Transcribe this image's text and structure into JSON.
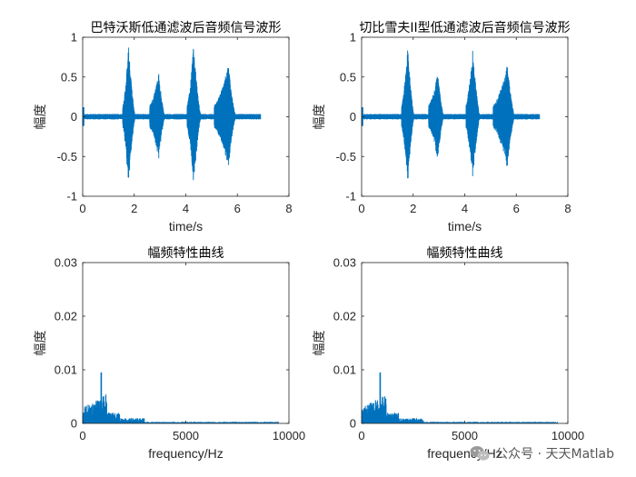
{
  "chart_data": [
    {
      "type": "line",
      "title": "巴特沃斯低通滤波后音频信号波形",
      "xlabel": "time/s",
      "ylabel": "幅度",
      "xlim": [
        0,
        8
      ],
      "ylim": [
        -1,
        1
      ],
      "xticks": [
        0,
        2,
        4,
        6,
        8
      ],
      "yticks": [
        -1,
        -0.5,
        0,
        0.5,
        1
      ],
      "ytick_labels": [
        "-1",
        "-0.5",
        "0",
        "0.5",
        "1"
      ],
      "series_color": "#0072BD",
      "signal_end": 6.9,
      "bursts": [
        {
          "start": 1.55,
          "peak": 1.78,
          "end": 2.05,
          "amp": 0.9
        },
        {
          "start": 2.6,
          "peak": 2.95,
          "end": 3.2,
          "amp": 0.55
        },
        {
          "start": 4.05,
          "peak": 4.3,
          "end": 4.6,
          "amp": 0.9
        },
        {
          "start": 5.1,
          "peak": 5.65,
          "end": 5.95,
          "amp": 0.65
        }
      ]
    },
    {
      "type": "line",
      "title": "切比雪夫II型低通滤波后音频信号波形",
      "xlabel": "time/s",
      "ylabel": "幅度",
      "xlim": [
        0,
        8
      ],
      "ylim": [
        -1,
        1
      ],
      "xticks": [
        0,
        2,
        4,
        6,
        8
      ],
      "yticks": [
        -1,
        -0.5,
        0,
        0.5,
        1
      ],
      "ytick_labels": [
        "-1",
        "-0.5",
        "0",
        "0.5",
        "1"
      ],
      "series_color": "#0072BD",
      "signal_end": 6.9,
      "bursts": [
        {
          "start": 1.55,
          "peak": 1.78,
          "end": 2.05,
          "amp": 0.9
        },
        {
          "start": 2.6,
          "peak": 2.95,
          "end": 3.2,
          "amp": 0.55
        },
        {
          "start": 4.05,
          "peak": 4.3,
          "end": 4.6,
          "amp": 0.9
        },
        {
          "start": 5.1,
          "peak": 5.65,
          "end": 5.95,
          "amp": 0.65
        }
      ]
    },
    {
      "type": "bar",
      "title": "幅频特性曲线",
      "xlabel": "frequency/Hz",
      "ylabel": "幅度",
      "xlim": [
        0,
        10000
      ],
      "ylim": [
        0,
        0.03
      ],
      "xticks": [
        0,
        5000,
        10000
      ],
      "yticks": [
        0,
        0.01,
        0.02,
        0.03
      ],
      "ytick_labels": [
        "0",
        "0.01",
        "0.02",
        "0.03"
      ],
      "series_color": "#0072BD",
      "peak": {
        "x": 900,
        "y": 0.0095
      },
      "spectrum_end": 9500
    },
    {
      "type": "bar",
      "title": "幅频特性曲线",
      "xlabel": "frequency/Hz",
      "ylabel": "幅度",
      "xlim": [
        0,
        10000
      ],
      "ylim": [
        0,
        0.03
      ],
      "xticks": [
        0,
        5000,
        10000
      ],
      "yticks": [
        0,
        0.01,
        0.02,
        0.03
      ],
      "ytick_labels": [
        "0",
        "0.01",
        "0.02",
        "0.03"
      ],
      "series_color": "#0072BD",
      "peak": {
        "x": 900,
        "y": 0.0095
      },
      "spectrum_end": 9500
    }
  ],
  "watermark": {
    "text": "公众号 · 天天Matlab",
    "icon": "wechat-icon"
  }
}
